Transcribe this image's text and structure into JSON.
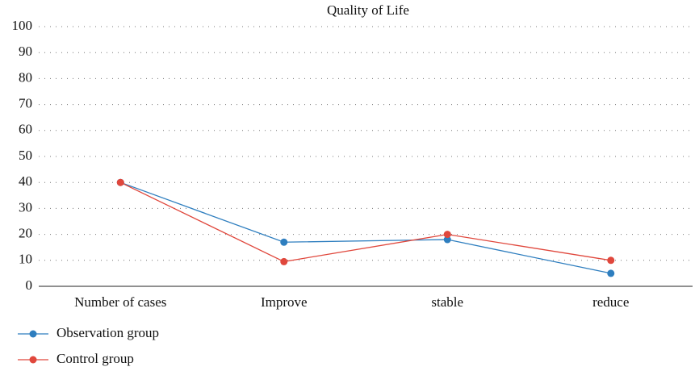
{
  "chart_data": {
    "type": "line",
    "title": "Quality of Life",
    "categories": [
      "Number of cases",
      "Improve",
      "stable",
      "reduce"
    ],
    "series": [
      {
        "name": "Observation group",
        "color": "#2e7ebf",
        "values": [
          40,
          17,
          18,
          5
        ]
      },
      {
        "name": "Control group",
        "color": "#e0473c",
        "values": [
          40,
          9.5,
          20,
          10
        ]
      }
    ],
    "ylim": [
      0,
      100
    ],
    "yticks": [
      0,
      10,
      20,
      30,
      40,
      50,
      60,
      70,
      80,
      90,
      100
    ],
    "grid": true,
    "legend": "bottom-left"
  }
}
